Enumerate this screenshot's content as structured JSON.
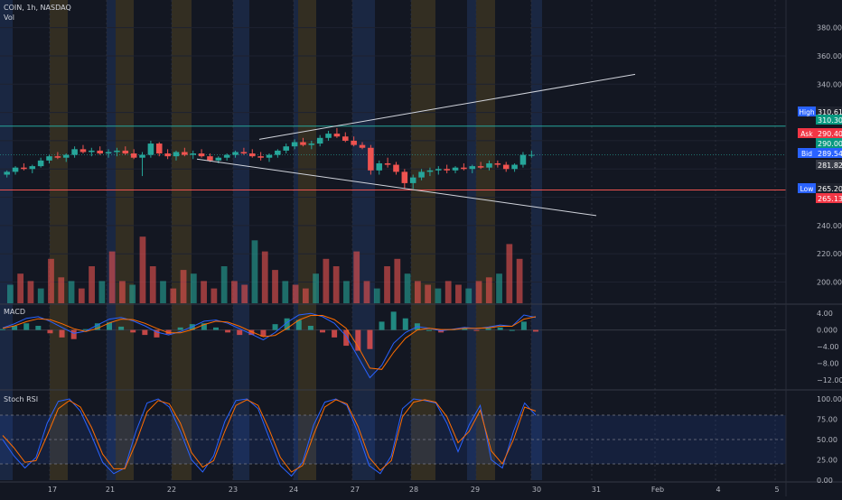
{
  "header": {
    "symbol": "COIN, 1h, NASDAQ",
    "vol_label": "Vol"
  },
  "panes": {
    "macd_label": "MACD",
    "stoch_label": "Stoch RSI"
  },
  "price_axis": {
    "ticks": [
      "380.00",
      "360.00",
      "340.00",
      "320.00",
      "240.00",
      "220.00",
      "200.00"
    ]
  },
  "price_tags": {
    "high_label": "High",
    "high_value": "310.61",
    "line_value": "310.30",
    "ask_label": "Ask",
    "ask_value": "290.40",
    "last_value": "290.00",
    "bid_label": "Bid",
    "bid_value": "289.54",
    "prev_value": "281.82",
    "low_label": "Low",
    "low_value": "265.20",
    "low_line_value": "265.13"
  },
  "macd_axis": {
    "ticks": [
      "4.00",
      "0.000",
      "−4.00",
      "−8.00",
      "−12.00"
    ]
  },
  "stoch_axis": {
    "ticks": [
      "100.00",
      "75.00",
      "50.00",
      "25.00",
      "0.00"
    ]
  },
  "time_axis": {
    "ticks": [
      "17",
      "21",
      "22",
      "23",
      "24",
      "27",
      "28",
      "29",
      "30",
      "31",
      "Feb",
      "4",
      "5"
    ]
  },
  "colors": {
    "up": "#26a69a",
    "down": "#ef5350",
    "bg": "#131722",
    "macd_line": "#2962ff",
    "signal_line": "#ff6d00",
    "stoch_k": "#2962ff",
    "stoch_d": "#ff6d00",
    "session_orange": "#3a3322",
    "session_blue": "#1c2a48"
  },
  "chart_data": {
    "type": "candlestick",
    "symbol": "COIN",
    "interval": "1h",
    "exchange": "NASDAQ",
    "price_range": [
      185,
      390
    ],
    "horizontal_levels": [
      310.3,
      265.13
    ],
    "trendlines": [
      {
        "from": [
          "23",
          301
        ],
        "to": [
          "30+",
          347
        ]
      },
      {
        "from": [
          "22",
          287
        ],
        "to": [
          "31",
          247
        ]
      }
    ],
    "candles_ohlc": [
      [
        276,
        279,
        274,
        278
      ],
      [
        278,
        282,
        276,
        281
      ],
      [
        281,
        284,
        279,
        280
      ],
      [
        280,
        283,
        277,
        282
      ],
      [
        282,
        288,
        281,
        286
      ],
      [
        286,
        290,
        284,
        289
      ],
      [
        289,
        292,
        287,
        288
      ],
      [
        288,
        291,
        285,
        290
      ],
      [
        290,
        296,
        288,
        294
      ],
      [
        294,
        297,
        291,
        292
      ],
      [
        292,
        295,
        289,
        293
      ],
      [
        293,
        296,
        290,
        291
      ],
      [
        291,
        294,
        288,
        292
      ],
      [
        292,
        295,
        289,
        293
      ],
      [
        293,
        296,
        290,
        291
      ],
      [
        291,
        294,
        287,
        288
      ],
      [
        288,
        292,
        275,
        290
      ],
      [
        290,
        300,
        288,
        298
      ],
      [
        298,
        299,
        289,
        291
      ],
      [
        291,
        294,
        287,
        289
      ],
      [
        289,
        293,
        286,
        292
      ],
      [
        292,
        295,
        289,
        290
      ],
      [
        290,
        293,
        287,
        291
      ],
      [
        291,
        294,
        288,
        289
      ],
      [
        289,
        291,
        285,
        286
      ],
      [
        286,
        289,
        284,
        288
      ],
      [
        288,
        291,
        286,
        290
      ],
      [
        290,
        293,
        288,
        292
      ],
      [
        292,
        295,
        290,
        291
      ],
      [
        291,
        294,
        288,
        289
      ],
      [
        289,
        292,
        286,
        288
      ],
      [
        288,
        291,
        285,
        290
      ],
      [
        290,
        294,
        288,
        293
      ],
      [
        293,
        298,
        291,
        296
      ],
      [
        296,
        301,
        294,
        299
      ],
      [
        299,
        302,
        296,
        297
      ],
      [
        297,
        300,
        294,
        298
      ],
      [
        298,
        304,
        296,
        302
      ],
      [
        302,
        307,
        300,
        305
      ],
      [
        305,
        309,
        302,
        303
      ],
      [
        303,
        306,
        299,
        300
      ],
      [
        300,
        303,
        296,
        297
      ],
      [
        297,
        299,
        294,
        295
      ],
      [
        295,
        297,
        276,
        279
      ],
      [
        279,
        286,
        276,
        284
      ],
      [
        284,
        288,
        281,
        283
      ],
      [
        283,
        285,
        276,
        278
      ],
      [
        278,
        280,
        266,
        270
      ],
      [
        270,
        276,
        266,
        274
      ],
      [
        274,
        280,
        272,
        278
      ],
      [
        278,
        281,
        275,
        279
      ],
      [
        279,
        282,
        276,
        280
      ],
      [
        280,
        283,
        277,
        279
      ],
      [
        279,
        282,
        277,
        281
      ],
      [
        281,
        284,
        279,
        280
      ],
      [
        280,
        283,
        277,
        282
      ],
      [
        282,
        285,
        280,
        281
      ],
      [
        281,
        286,
        279,
        284
      ],
      [
        284,
        286,
        281,
        283
      ],
      [
        283,
        285,
        278,
        280
      ],
      [
        280,
        284,
        278,
        283
      ],
      [
        283,
        292,
        281,
        290
      ],
      [
        290,
        293,
        288,
        290
      ]
    ],
    "volume_bars": [
      0.25,
      0.4,
      0.3,
      0.2,
      0.6,
      0.35,
      0.3,
      0.2,
      0.5,
      0.3,
      0.7,
      0.3,
      0.25,
      0.9,
      0.5,
      0.3,
      0.2,
      0.45,
      0.4,
      0.3,
      0.2,
      0.5,
      0.3,
      0.25,
      0.85,
      0.7,
      0.45,
      0.3,
      0.25,
      0.2,
      0.4,
      0.6,
      0.5,
      0.3,
      0.7,
      0.3,
      0.2,
      0.5,
      0.6,
      0.4,
      0.3,
      0.25,
      0.2,
      0.3,
      0.25,
      0.2,
      0.3,
      0.35,
      0.4,
      0.8,
      0.6
    ],
    "macd_range": [
      -14,
      6
    ],
    "macd_line": [
      0.5,
      1.5,
      2.8,
      3.2,
      2.1,
      0.6,
      -0.8,
      -0.3,
      1.2,
      2.6,
      3.0,
      2.2,
      1.0,
      -0.5,
      -1.2,
      -0.4,
      0.8,
      2.1,
      2.4,
      1.6,
      0.3,
      -1.0,
      -2.4,
      -0.6,
      1.8,
      3.6,
      4.0,
      3.2,
      1.6,
      -1.5,
      -6.5,
      -11.5,
      -8.5,
      -3.2,
      -0.6,
      0.8,
      0.4,
      -0.2,
      0.2,
      0.6,
      0.3,
      0.7,
      1.2,
      0.9,
      3.6,
      3.0
    ],
    "signal_line": [
      0.4,
      1.0,
      2.0,
      2.7,
      2.5,
      1.5,
      0.3,
      -0.4,
      0.4,
      1.7,
      2.6,
      2.5,
      1.6,
      0.4,
      -0.7,
      -0.7,
      0.1,
      1.3,
      2.1,
      1.9,
      0.9,
      -0.4,
      -1.6,
      -1.3,
      0.4,
      2.4,
      3.5,
      3.5,
      2.5,
      0.4,
      -4.0,
      -9.2,
      -9.5,
      -5.4,
      -2.0,
      0.0,
      0.4,
      0.1,
      0.1,
      0.4,
      0.4,
      0.5,
      0.9,
      0.9,
      2.6,
      3.2
    ],
    "stoch_range": [
      0,
      100
    ],
    "stoch_bands": [
      20,
      80
    ],
    "stoch_k": [
      50,
      30,
      15,
      28,
      70,
      97,
      100,
      85,
      55,
      22,
      8,
      15,
      60,
      95,
      100,
      90,
      60,
      25,
      10,
      30,
      72,
      98,
      100,
      88,
      52,
      18,
      5,
      22,
      68,
      96,
      100,
      92,
      58,
      18,
      8,
      30,
      88,
      100,
      98,
      95,
      70,
      35,
      68,
      92,
      25,
      15,
      60,
      95,
      80
    ],
    "stoch_d": [
      55,
      40,
      22,
      24,
      55,
      88,
      98,
      90,
      65,
      32,
      14,
      14,
      46,
      84,
      98,
      94,
      70,
      34,
      16,
      24,
      60,
      92,
      99,
      92,
      62,
      28,
      10,
      18,
      56,
      90,
      99,
      94,
      66,
      28,
      12,
      24,
      78,
      96,
      99,
      96,
      78,
      46,
      60,
      86,
      36,
      20,
      50,
      90,
      85
    ]
  }
}
